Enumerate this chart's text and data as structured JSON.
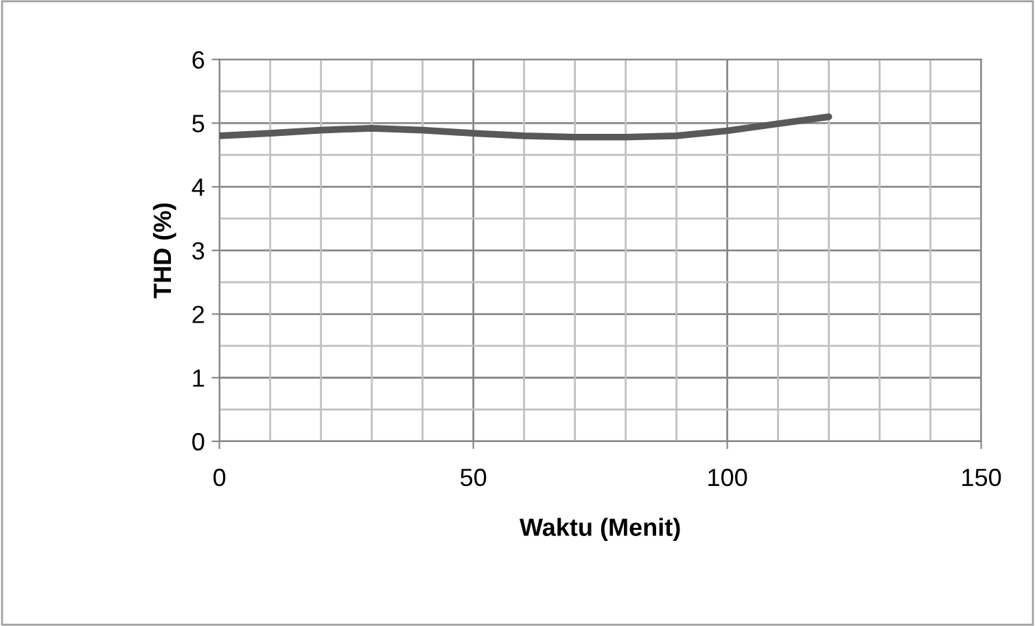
{
  "chart_data": {
    "type": "line",
    "xlabel": "Waktu (Menit)",
    "ylabel": "THD (%)",
    "x": [
      0,
      10,
      20,
      30,
      40,
      50,
      60,
      70,
      80,
      90,
      100,
      110,
      120
    ],
    "series": [
      {
        "color": "#595959",
        "values": [
          4.8,
          4.84,
          4.89,
          4.92,
          4.89,
          4.84,
          4.8,
          4.78,
          4.78,
          4.8,
          4.88,
          4.99,
          5.1
        ]
      }
    ],
    "xlim": [
      0,
      150
    ],
    "xticks": [
      0,
      50,
      100,
      150
    ],
    "ylim": [
      0,
      6
    ],
    "yticks": [
      0,
      1,
      2,
      3,
      4,
      5,
      6
    ],
    "grid": true,
    "marker": "none",
    "line_style": "solid"
  }
}
